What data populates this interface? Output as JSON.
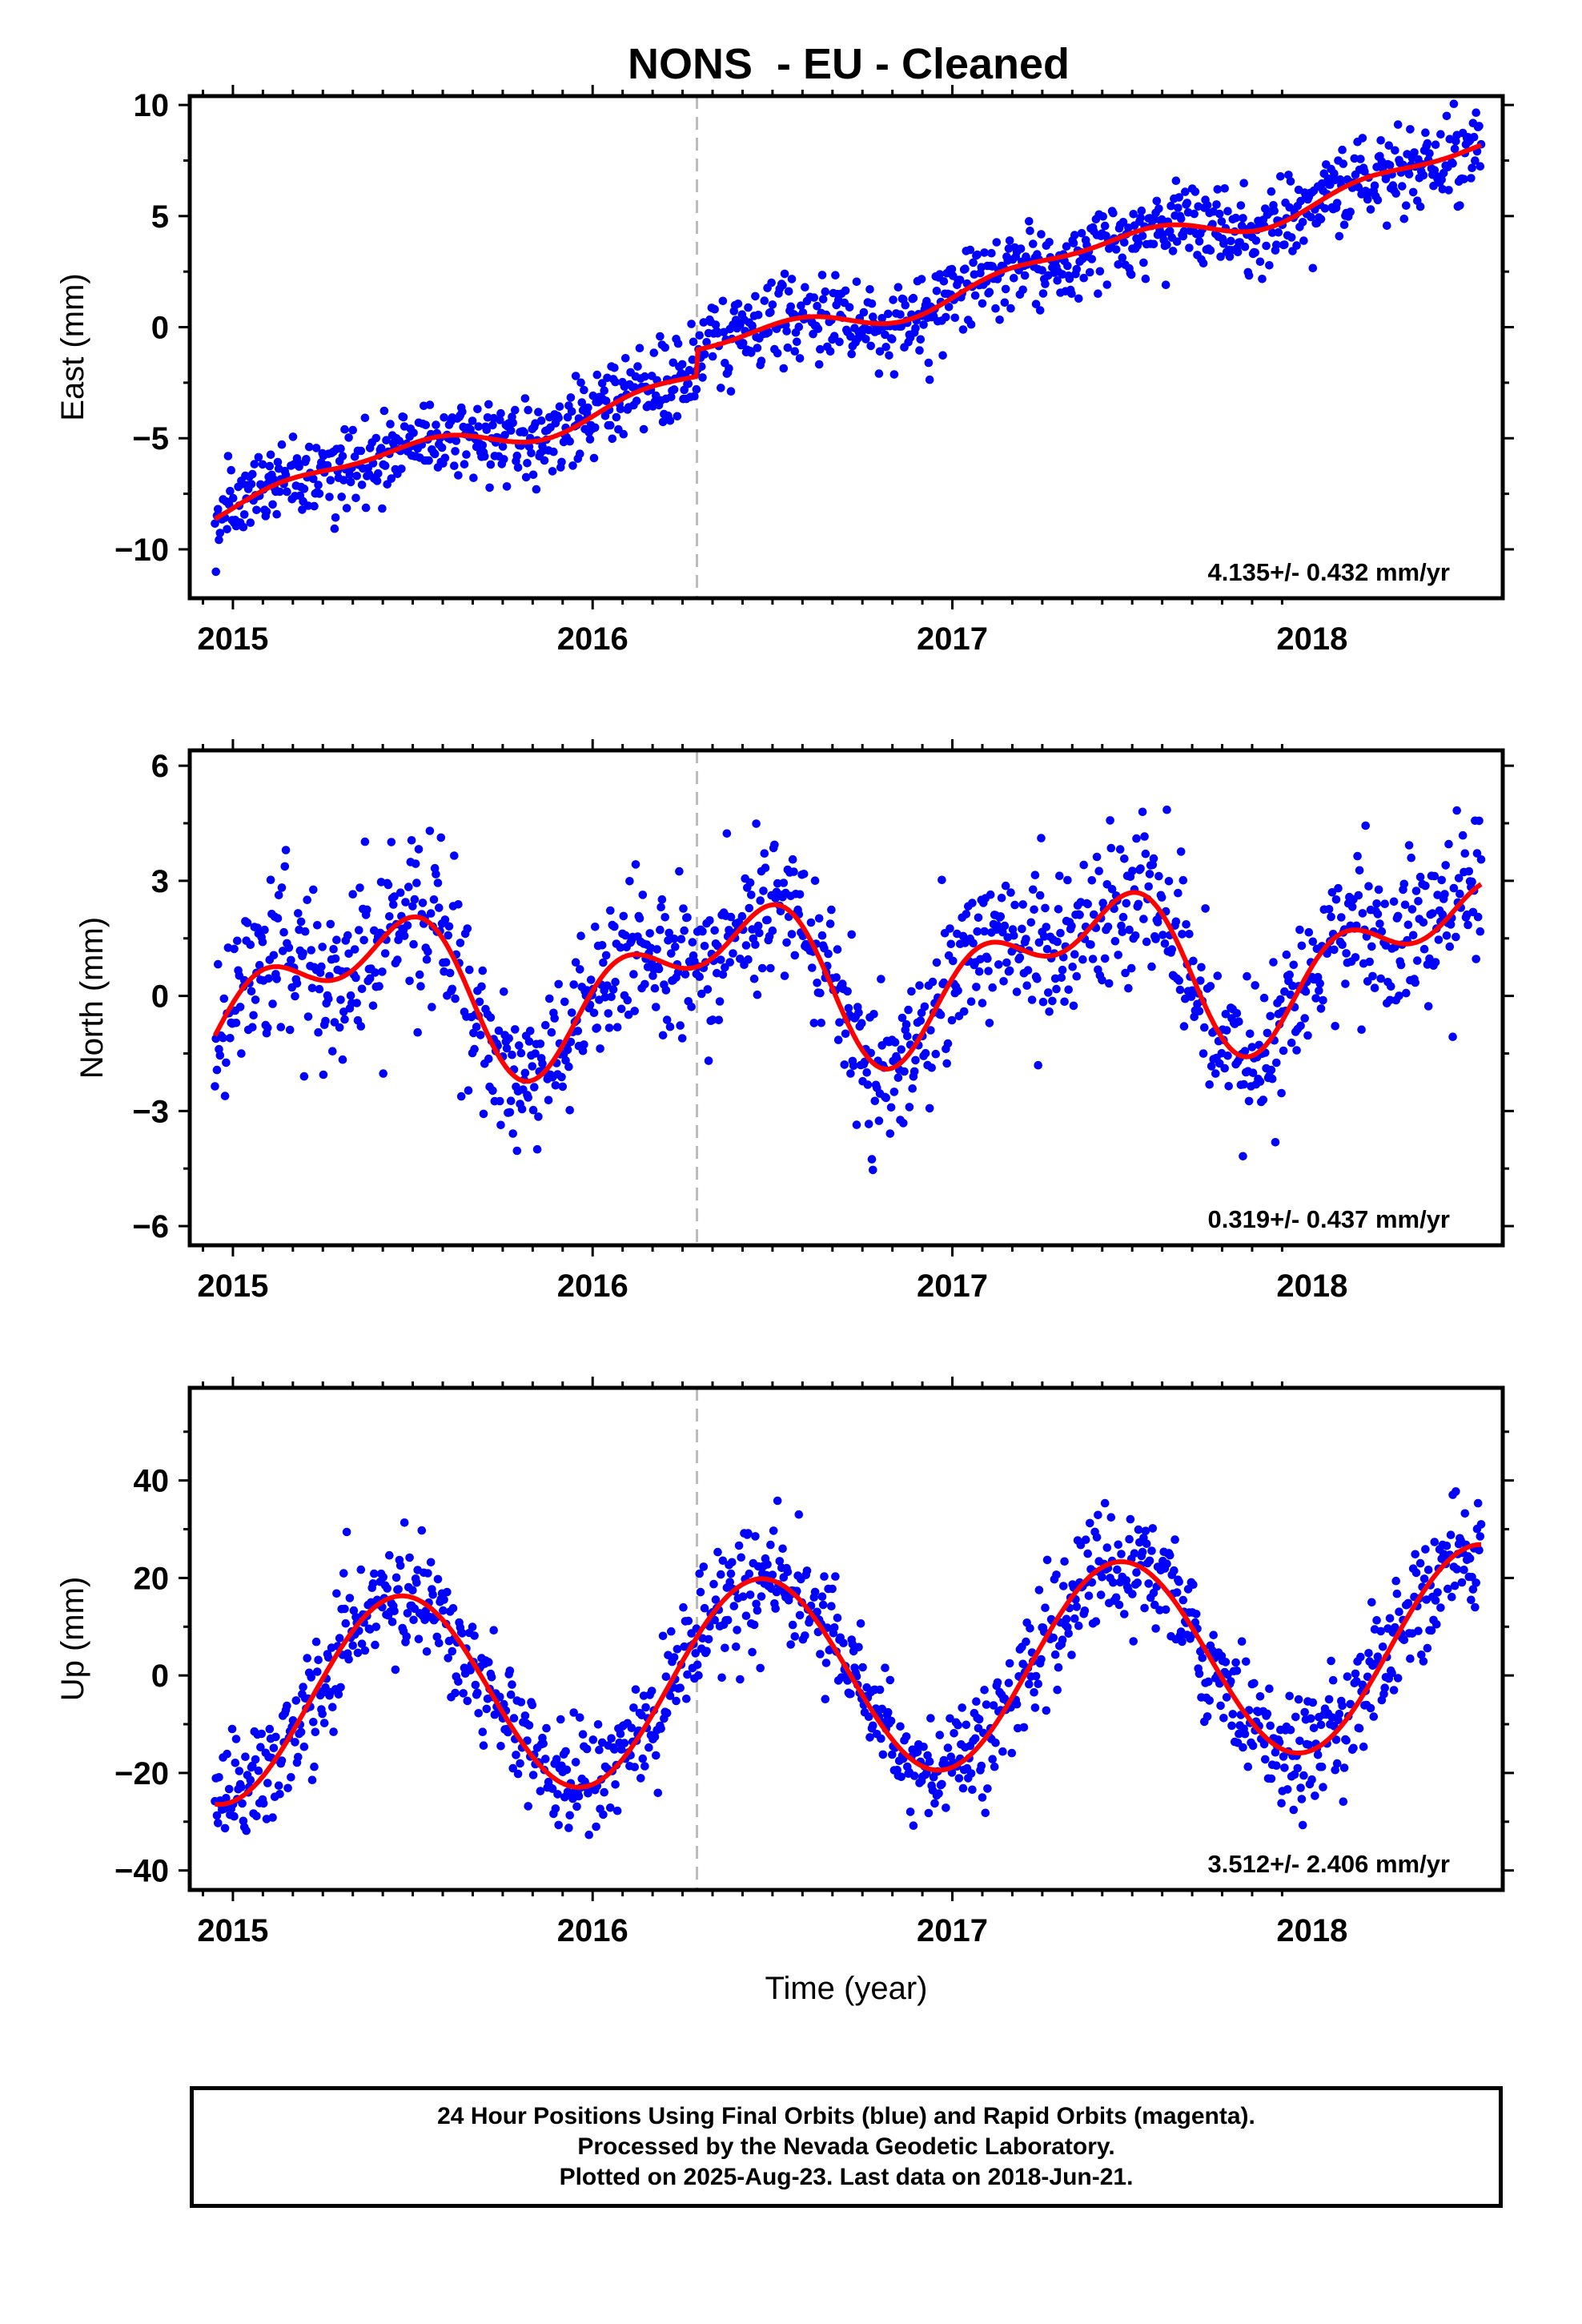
{
  "title": "NONS  - EU - Cleaned",
  "footer": {
    "line1": "24 Hour Positions Using Final Orbits (blue) and Rapid Orbits (magenta).",
    "line2": "Processed by the Nevada Geodetic Laboratory.",
    "line3": "Plotted on 2025-Aug-23. Last data on 2018-Jun-21."
  },
  "colors": {
    "final_orbits": "#0000ff",
    "rapid_orbits": "#ff00ff",
    "model_fit": "#ff0000",
    "equipment_change": "#bbbbbb"
  },
  "chart_data": [
    {
      "type": "scatter",
      "xlabel": "",
      "ylabel": "East (mm)",
      "xlim": [
        2014.88,
        2018.53
      ],
      "ylim": [
        -12.2,
        10.4
      ],
      "xticks": [
        2015,
        2016,
        2017,
        2018
      ],
      "xtick_labels": [
        "2015",
        "2016",
        "2017",
        "2018"
      ],
      "yticks": [
        -10,
        -5,
        0,
        5,
        10
      ],
      "ytick_labels": [
        "−10",
        "−5",
        "0",
        "5",
        "10"
      ],
      "rate_text": "4.135+/- 0.432 mm/yr",
      "offset_epoch": 2016.29,
      "grid": false,
      "trend": {
        "t0": 2014.95,
        "y0": -8.0,
        "slope": 4.135,
        "step": {
          "at": 2016.29,
          "size": 1.2
        },
        "seasonal": [
          {
            "amp": 0.55,
            "period": 1.0,
            "phase": 1.2
          },
          {
            "amp": 0.3,
            "period": 0.5,
            "phase": 0.4
          }
        ]
      },
      "noise_sd": 0.95,
      "series": [
        {
          "name": "",
          "role": "final_orbits",
          "x_start": 2014.95,
          "x_end": 2018.47,
          "n_points": 1250
        }
      ]
    },
    {
      "type": "scatter",
      "xlabel": "",
      "ylabel": "North (mm)",
      "xlim": [
        2014.88,
        2018.53
      ],
      "ylim": [
        -6.5,
        6.4
      ],
      "xticks": [
        2015,
        2016,
        2017,
        2018
      ],
      "xtick_labels": [
        "2015",
        "2016",
        "2017",
        "2018"
      ],
      "yticks": [
        -6,
        -3,
        0,
        3,
        6
      ],
      "ytick_labels": [
        "−6",
        "−3",
        "0",
        "3",
        "6"
      ],
      "rate_text": "0.319+/- 0.437 mm/yr",
      "offset_epoch": 2016.29,
      "grid": false,
      "trend": {
        "t0": 2014.95,
        "y0": 0.0,
        "slope": 0.319,
        "step": {
          "at": 2016.29,
          "size": 0.0
        },
        "seasonal": [
          {
            "amp": 1.55,
            "period": 1.0,
            "phase": 1.05
          },
          {
            "amp": 1.05,
            "period": 0.5,
            "phase": -0.3
          }
        ]
      },
      "noise_sd": 1.0,
      "series": [
        {
          "name": "",
          "role": "final_orbits",
          "x_start": 2014.95,
          "x_end": 2018.47,
          "n_points": 1250
        }
      ]
    },
    {
      "type": "scatter",
      "xlabel": "Time (year)",
      "ylabel": "Up (mm)",
      "xlim": [
        2014.88,
        2018.53
      ],
      "ylim": [
        -44,
        59
      ],
      "xticks": [
        2015,
        2016,
        2017,
        2018
      ],
      "xtick_labels": [
        "2015",
        "2016",
        "2017",
        "2018"
      ],
      "yticks": [
        -40,
        -20,
        0,
        20,
        40
      ],
      "ytick_labels": [
        "−40",
        "−20",
        "0",
        "20",
        "40"
      ],
      "rate_text": "3.512+/- 2.406 mm/yr",
      "offset_epoch": 2016.29,
      "grid": false,
      "trend": {
        "t0": 2014.95,
        "y0": -6.0,
        "slope": 3.512,
        "step": {
          "at": 2016.29,
          "size": 0.0
        },
        "seasonal": [
          {
            "amp": 20.5,
            "period": 1.0,
            "phase": 1.67
          }
        ]
      },
      "noise_sd": 6.0,
      "series": [
        {
          "name": "",
          "role": "final_orbits",
          "x_start": 2014.95,
          "x_end": 2018.47,
          "n_points": 1250
        }
      ]
    }
  ]
}
